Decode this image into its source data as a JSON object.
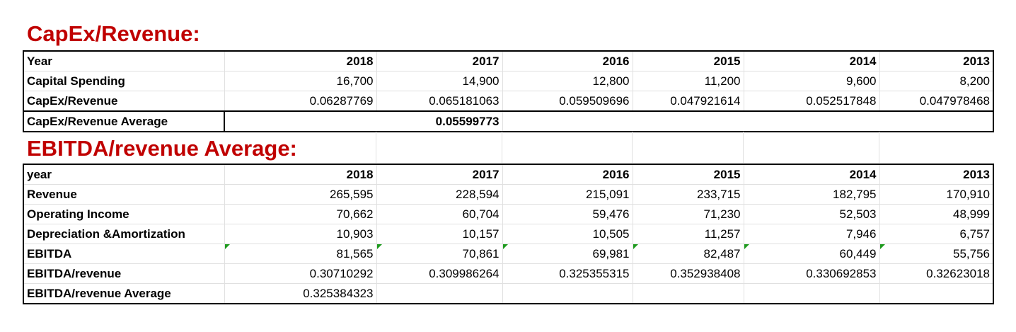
{
  "capex": {
    "title": "CapEx/Revenue:",
    "rows": [
      {
        "label": "Year",
        "values": [
          "2018",
          "2017",
          "2016",
          "2015",
          "2014",
          "2013"
        ],
        "bold": true
      },
      {
        "label": "Capital Spending",
        "values": [
          "16,700",
          "14,900",
          "12,800",
          "11,200",
          "9,600",
          "8,200"
        ]
      },
      {
        "label": "CapEx/Revenue",
        "values": [
          "0.06287769",
          "0.065181063",
          "0.059509696",
          "0.047921614",
          "0.052517848",
          "0.047978468"
        ]
      }
    ],
    "average": {
      "label": "CapEx/Revenue Average",
      "value": "0.05599773"
    }
  },
  "ebitda": {
    "title": "EBITDA/revenue Average:",
    "rows": [
      {
        "label": "year",
        "values": [
          "2018",
          "2017",
          "2016",
          "2015",
          "2014",
          "2013"
        ],
        "bold": true
      },
      {
        "label": "Revenue",
        "values": [
          "265,595",
          "228,594",
          "215,091",
          "233,715",
          "182,795",
          "170,910"
        ]
      },
      {
        "label": "Operating Income",
        "values": [
          "70,662",
          "60,704",
          "59,476",
          "71,230",
          "52,503",
          "48,999"
        ]
      },
      {
        "label": "Depreciation &Amortization",
        "values": [
          "10,903",
          "10,157",
          "10,505",
          "11,257",
          "7,946",
          "6,757"
        ]
      },
      {
        "label": "EBITDA",
        "values": [
          "81,565",
          "70,861",
          "69,981",
          "82,487",
          "60,449",
          "55,756"
        ],
        "flags": true
      },
      {
        "label": "EBITDA/revenue",
        "values": [
          "0.30710292",
          "0.309986264",
          "0.325355315",
          "0.352938408",
          "0.330692853",
          "0.32623018"
        ]
      }
    ],
    "average": {
      "label": "EBITDA/revenue Average",
      "value": "0.325384323"
    }
  }
}
